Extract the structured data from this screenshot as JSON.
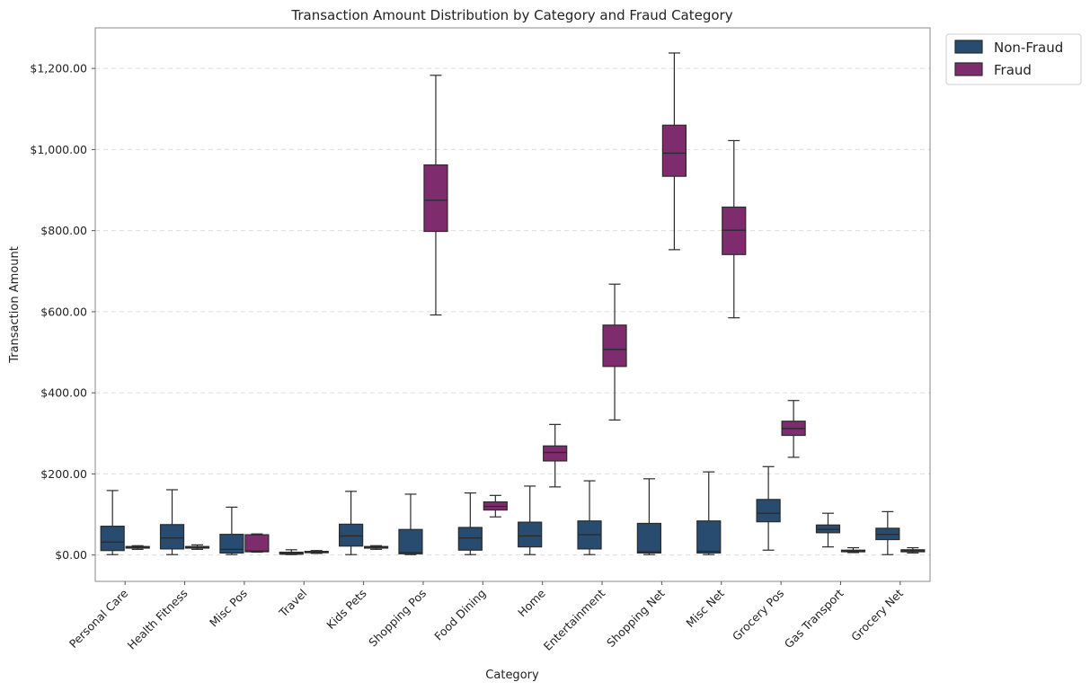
{
  "chart_data": {
    "type": "box",
    "title": "Transaction Amount Distribution by Category and Fraud Category",
    "xlabel": "Category",
    "ylabel": "Transaction Amount",
    "ylim": [
      -65,
      1300
    ],
    "yticks": [
      0,
      200,
      400,
      600,
      800,
      1000,
      1200
    ],
    "ytick_labels": [
      "$0.00",
      "$200.00",
      "$400.00",
      "$600.00",
      "$800.00",
      "$1,000.00",
      "$1,200.00"
    ],
    "grid": "horizontal dashed",
    "legend_position": "outside top-right",
    "categories": [
      "Personal Care",
      "Health Fitness",
      "Misc Pos",
      "Travel",
      "Kids Pets",
      "Shopping Pos",
      "Food Dining",
      "Home",
      "Entertainment",
      "Shopping Net",
      "Misc Net",
      "Grocery Pos",
      "Gas Transport",
      "Grocery Net"
    ],
    "series": [
      {
        "name": "Non-Fraud",
        "color": "#274c6f",
        "boxes": [
          {
            "min": 1,
            "q1": 11,
            "median": 32,
            "q3": 71,
            "max": 159
          },
          {
            "min": 1,
            "q1": 15,
            "median": 42,
            "q3": 75,
            "max": 161
          },
          {
            "min": 1,
            "q1": 5,
            "median": 14,
            "q3": 51,
            "max": 118
          },
          {
            "min": 1,
            "q1": 2,
            "median": 4,
            "q3": 7,
            "max": 13
          },
          {
            "min": 1,
            "q1": 22,
            "median": 47,
            "q3": 76,
            "max": 157
          },
          {
            "min": 1,
            "q1": 3,
            "median": 6,
            "q3": 63,
            "max": 150
          },
          {
            "min": 1,
            "q1": 12,
            "median": 42,
            "q3": 68,
            "max": 153
          },
          {
            "min": 1,
            "q1": 20,
            "median": 47,
            "q3": 81,
            "max": 170
          },
          {
            "min": 1,
            "q1": 15,
            "median": 50,
            "q3": 84,
            "max": 183
          },
          {
            "min": 1,
            "q1": 5,
            "median": 8,
            "q3": 78,
            "max": 188
          },
          {
            "min": 1,
            "q1": 5,
            "median": 9,
            "q3": 84,
            "max": 205
          },
          {
            "min": 12,
            "q1": 82,
            "median": 103,
            "q3": 137,
            "max": 218
          },
          {
            "min": 20,
            "q1": 55,
            "median": 63,
            "q3": 74,
            "max": 103
          },
          {
            "min": 1,
            "q1": 38,
            "median": 51,
            "q3": 66,
            "max": 107
          }
        ]
      },
      {
        "name": "Fraud",
        "color": "#7e2c6e",
        "boxes": [
          {
            "min": 14,
            "q1": 17,
            "median": 19,
            "q3": 21,
            "max": 23
          },
          {
            "min": 14,
            "q1": 17,
            "median": 19,
            "q3": 21,
            "max": 25
          },
          {
            "min": 7,
            "q1": 8,
            "median": 10,
            "q3": 50,
            "max": 52
          },
          {
            "min": 4,
            "q1": 6,
            "median": 8,
            "q3": 9,
            "max": 11
          },
          {
            "min": 14,
            "q1": 17,
            "median": 19,
            "q3": 21,
            "max": 23
          },
          {
            "min": 592,
            "q1": 798,
            "median": 875,
            "q3": 962,
            "max": 1183
          },
          {
            "min": 94,
            "q1": 111,
            "median": 120,
            "q3": 131,
            "max": 147
          },
          {
            "min": 168,
            "q1": 232,
            "median": 253,
            "q3": 269,
            "max": 322
          },
          {
            "min": 333,
            "q1": 465,
            "median": 507,
            "q3": 567,
            "max": 668
          },
          {
            "min": 753,
            "q1": 934,
            "median": 991,
            "q3": 1060,
            "max": 1238
          },
          {
            "min": 585,
            "q1": 741,
            "median": 801,
            "q3": 858,
            "max": 1022
          },
          {
            "min": 241,
            "q1": 295,
            "median": 312,
            "q3": 330,
            "max": 381
          },
          {
            "min": 6,
            "q1": 8,
            "median": 10,
            "q3": 12,
            "max": 18
          },
          {
            "min": 5,
            "q1": 8,
            "median": 10,
            "q3": 13,
            "max": 18
          }
        ]
      }
    ]
  }
}
